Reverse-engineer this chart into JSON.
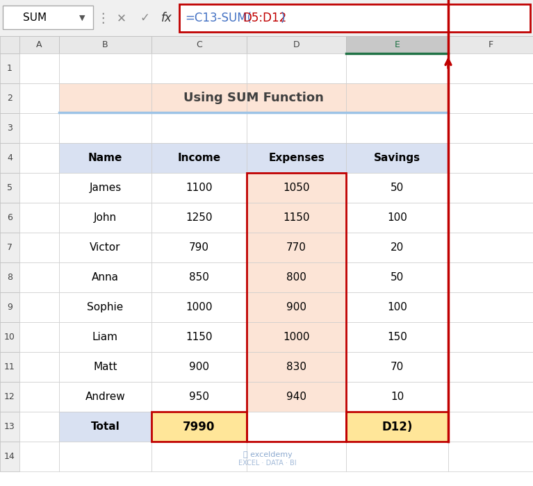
{
  "title": "Using SUM Function",
  "formula_parts": [
    {
      "text": "=C13-SUM(",
      "color": "#4472C4"
    },
    {
      "text": "D5:D12",
      "color": "#C00000"
    },
    {
      "text": ")",
      "color": "#4472C4"
    }
  ],
  "col_labels": [
    "Name",
    "Income",
    "Expenses",
    "Savings"
  ],
  "rows": [
    [
      "James",
      "1100",
      "1050",
      "50"
    ],
    [
      "John",
      "1250",
      "1150",
      "100"
    ],
    [
      "Victor",
      "790",
      "770",
      "20"
    ],
    [
      "Anna",
      "850",
      "800",
      "50"
    ],
    [
      "Sophie",
      "1000",
      "900",
      "100"
    ],
    [
      "Liam",
      "1150",
      "1000",
      "150"
    ],
    [
      "Matt",
      "900",
      "830",
      "70"
    ],
    [
      "Andrew",
      "950",
      "940",
      "10"
    ]
  ],
  "total_row": [
    "Total",
    "7990",
    "",
    "D12)"
  ],
  "expenses_bg": "#FCE4D6",
  "total_yellow": "#FFE699",
  "title_bg": "#FCE4D6",
  "title_underline": "#9DC3E6",
  "header_bg": "#D9E1F2",
  "red_color": "#C00000",
  "col_header_selected_bg": "#C8C8C8",
  "col_header_bg": "#E8E8E8",
  "cell_border": "#BBBBBB",
  "toolbar_bg": "#F0F0F0",
  "fig_w": 7.67,
  "fig_h": 7.0,
  "dpi": 100
}
